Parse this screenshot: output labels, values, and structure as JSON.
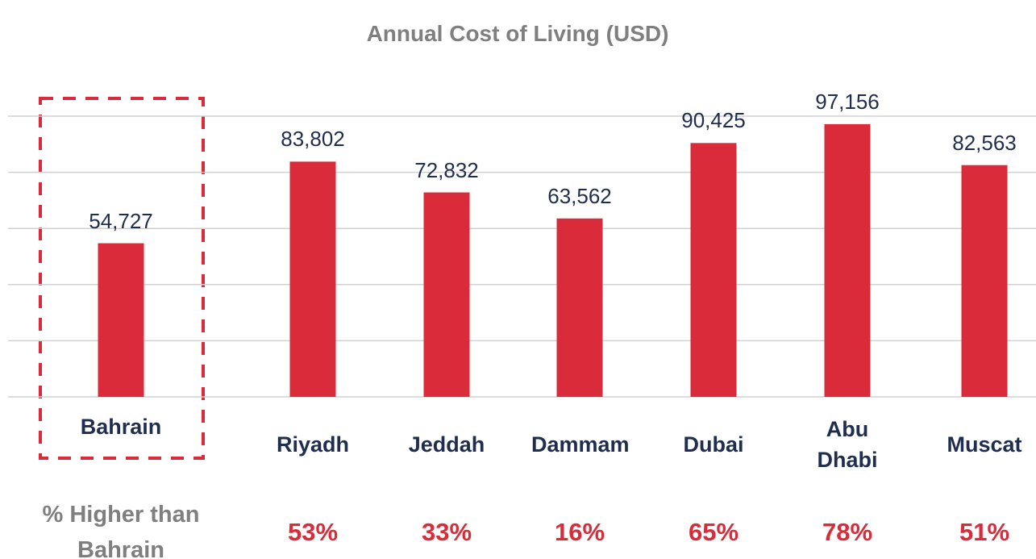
{
  "chart_data": {
    "type": "bar",
    "title": "Annual Cost of Living (USD)",
    "categories": [
      "Bahrain",
      "Riyadh",
      "Jeddah",
      "Dammam",
      "Dubai",
      "Abu Dhabi",
      "Muscat"
    ],
    "values": [
      54727,
      83802,
      72832,
      63562,
      90425,
      97156,
      82563
    ],
    "value_labels": [
      "54,727",
      "83,802",
      "72,832",
      "63,562",
      "90,425",
      "97,156",
      "82,563"
    ],
    "color": "#d92b3a",
    "ylim": [
      0,
      100000
    ],
    "yticks": [
      0,
      20000,
      40000,
      60000,
      80000,
      100000
    ],
    "grid": true,
    "pct_higher": {
      "label": "% Higher than Bahrain",
      "values": [
        null,
        53,
        33,
        16,
        65,
        78,
        51
      ],
      "value_labels": [
        null,
        "53%",
        "33%",
        "16%",
        "65%",
        "78%",
        "51%"
      ]
    }
  }
}
